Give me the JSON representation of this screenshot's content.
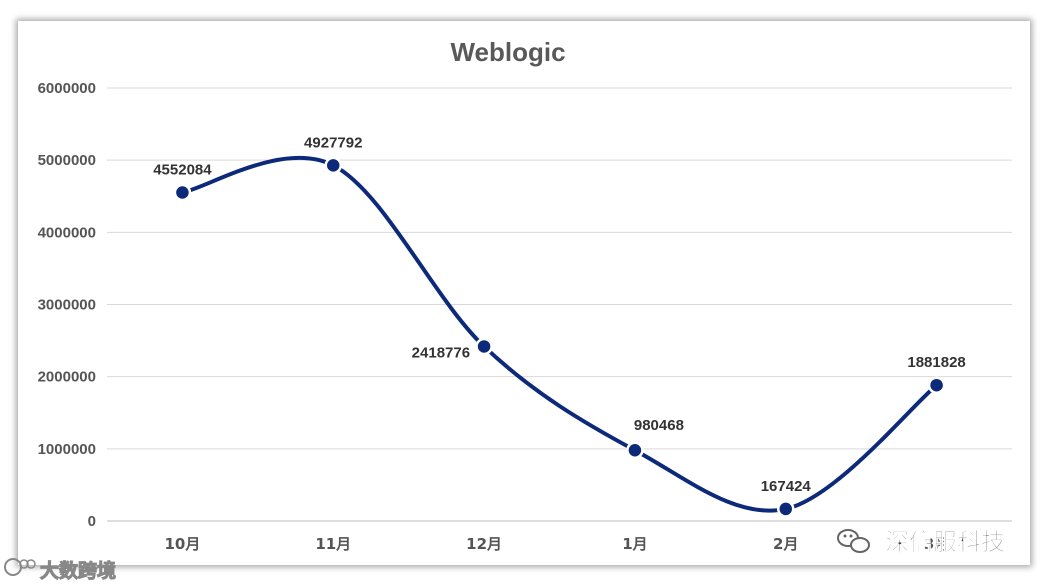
{
  "chart_data": {
    "type": "line",
    "title": "Weblogic",
    "xlabel": "",
    "ylabel": "",
    "categories": [
      "10月",
      "11月",
      "12月",
      "1月",
      "2月",
      "3月"
    ],
    "values": [
      4552084,
      4927792,
      2418776,
      980468,
      167424,
      1881828
    ],
    "data_labels": [
      "4552084",
      "4927792",
      "2418776",
      "980468",
      "167424",
      "1881828"
    ],
    "ylim": [
      0,
      6000000
    ],
    "yticks": [
      "0",
      "1000000",
      "2000000",
      "3000000",
      "4000000",
      "5000000",
      "6000000"
    ],
    "grid": true,
    "smooth": true,
    "line_color": "#0d2a7a",
    "marker_color": "#0d2a7a"
  },
  "watermarks": {
    "bottom_right": "深信服科技",
    "bottom_left": "大数跨境"
  }
}
